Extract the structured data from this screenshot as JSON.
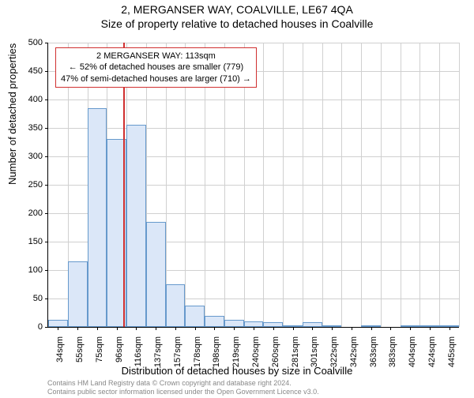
{
  "title_main": "2, MERGANSER WAY, COALVILLE, LE67 4QA",
  "title_sub": "Size of property relative to detached houses in Coalville",
  "ylabel": "Number of detached properties",
  "xlabel": "Distribution of detached houses by size in Coalville",
  "footer_line1": "Contains HM Land Registry data © Crown copyright and database right 2024.",
  "footer_line2": "Contains public sector information licensed under the Open Government Licence v3.0.",
  "callout_line1": "2 MERGANSER WAY: 113sqm",
  "callout_line2": "← 52% of detached houses are smaller (779)",
  "callout_line3": "47% of semi-detached houses are larger (710) →",
  "chart": {
    "type": "histogram",
    "bar_fill": "#dbe7f8",
    "bar_stroke": "#6699cc",
    "grid_color": "#d0d0d0",
    "marker_color": "#d03030",
    "background": "#ffffff",
    "ylim": [
      0,
      500
    ],
    "ytick_step": 50,
    "xticks": [
      "34sqm",
      "55sqm",
      "75sqm",
      "96sqm",
      "116sqm",
      "137sqm",
      "157sqm",
      "178sqm",
      "198sqm",
      "219sqm",
      "240sqm",
      "260sqm",
      "281sqm",
      "301sqm",
      "322sqm",
      "342sqm",
      "363sqm",
      "383sqm",
      "404sqm",
      "424sqm",
      "445sqm"
    ],
    "values": [
      13,
      115,
      385,
      330,
      355,
      185,
      75,
      38,
      20,
      12,
      10,
      8,
      3,
      8,
      3,
      0,
      2,
      0,
      2,
      3,
      2
    ],
    "marker_value_index": 3.85
  },
  "fonts": {
    "title_size": 14,
    "axis_label_size": 13,
    "tick_size": 11,
    "callout_size": 11,
    "footer_size": 9
  }
}
